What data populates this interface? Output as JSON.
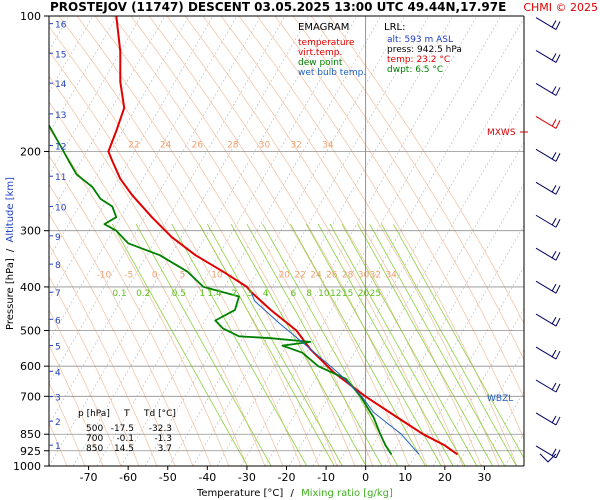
{
  "header": {
    "title": "PROSTEJOV (11747)   DESCENT   03.05.2025 13:00 UTC  49.44N,17.97E",
    "copyright": "CHMI © 2025"
  },
  "legend": {
    "title": "EMAGRAM",
    "items": [
      {
        "label": "temperature",
        "color": "#e00000"
      },
      {
        "label": "virt.temp.",
        "color": "#e00000"
      },
      {
        "label": "dew point",
        "color": "#008000"
      },
      {
        "label": "wet bulb temp.",
        "color": "#2060c0"
      }
    ]
  },
  "lrl": {
    "title": "LRL:",
    "alt": "alt: 593 m ASL",
    "press": "press: 942.5 hPa",
    "temp": "temp: 23.2 °C",
    "dwpt": "dwpt: 6.5 °C"
  },
  "axes": {
    "ylabel_pressure": "Pressure [hPa]",
    "ylabel_sep": "/",
    "ylabel_altitude": "Altitude [km]",
    "xlabel_temp": "Temperature [°C]",
    "xlabel_sep": "/",
    "xlabel_mix": "Mixing ratio [g/kg]"
  },
  "markers": {
    "mxws": "MXWS",
    "wbzl": "WBZL"
  },
  "table": {
    "headers": [
      "p [hPa]",
      "T",
      "Td [°C]"
    ],
    "rows": [
      [
        "500",
        "-17.5",
        "-32.3"
      ],
      [
        "700",
        "-0.1",
        "-1.3"
      ],
      [
        "850",
        "14.5",
        "3.7"
      ]
    ]
  },
  "colors": {
    "temperature": "#e00000",
    "dewpoint": "#008000",
    "wetbulb": "#2060c0",
    "isotherm": "#b8b8b8",
    "dry_adiabat": "#f0c0a0",
    "moist_adiabat": "#f8d8b0",
    "mixing_ratio": "#90d040",
    "isobar": "#909090",
    "wind": "#000060",
    "mxws": "#d00000"
  },
  "chart_data": {
    "type": "line",
    "x_axis": {
      "label": "Temperature [°C]",
      "ticks": [
        -70,
        -60,
        -50,
        -40,
        -30,
        -20,
        -10,
        0,
        10,
        20,
        30
      ],
      "range": [
        -80,
        40
      ]
    },
    "y_axis": {
      "label": "Pressure [hPa]",
      "scale": "log",
      "ticks": [
        100,
        200,
        300,
        400,
        500,
        600,
        700,
        850,
        925,
        1000
      ],
      "range": [
        100,
        1000
      ]
    },
    "altitude_km_ticks": [
      {
        "label": "16",
        "p": 104
      },
      {
        "label": "15",
        "p": 121
      },
      {
        "label": "14",
        "p": 141
      },
      {
        "label": "13",
        "p": 165
      },
      {
        "label": "12",
        "p": 194
      },
      {
        "label": "11",
        "p": 227
      },
      {
        "label": "10",
        "p": 265
      },
      {
        "label": "9",
        "p": 308
      },
      {
        "label": "8",
        "p": 356
      },
      {
        "label": "7",
        "p": 411
      },
      {
        "label": "6",
        "p": 472
      },
      {
        "label": "5",
        "p": 540
      },
      {
        "label": "4",
        "p": 616
      },
      {
        "label": "3",
        "p": 701
      },
      {
        "label": "2",
        "p": 795
      },
      {
        "label": "1",
        "p": 899
      }
    ],
    "dry_adiabat_labels": [
      {
        "text": "22",
        "p": 196,
        "t": -60
      },
      {
        "text": "24",
        "p": 196,
        "t": -52
      },
      {
        "text": "26",
        "p": 196,
        "t": -44
      },
      {
        "text": "28",
        "p": 196,
        "t": -35
      },
      {
        "text": "30",
        "p": 196,
        "t": -27
      },
      {
        "text": "32",
        "p": 196,
        "t": -19
      },
      {
        "text": "34",
        "p": 196,
        "t": -11
      },
      {
        "text": "-10",
        "p": 381,
        "t": -68
      },
      {
        "text": "-5",
        "p": 381,
        "t": -61
      },
      {
        "text": "0",
        "p": 381,
        "t": -54
      },
      {
        "text": "5",
        "p": 381,
        "t": -47
      },
      {
        "text": "10",
        "p": 381,
        "t": -39
      },
      {
        "text": "20",
        "p": 381,
        "t": -22
      },
      {
        "text": "22",
        "p": 381,
        "t": -18
      },
      {
        "text": "24",
        "p": 381,
        "t": -14
      },
      {
        "text": "26",
        "p": 381,
        "t": -10
      },
      {
        "text": "28",
        "p": 381,
        "t": -6
      },
      {
        "text": "30",
        "p": 381,
        "t": -2
      },
      {
        "text": "32",
        "p": 381,
        "t": 1
      },
      {
        "text": "34",
        "p": 381,
        "t": 5
      }
    ],
    "mixing_ratio_labels": [
      {
        "text": "0.1",
        "p": 419,
        "t": -64
      },
      {
        "text": "0.2",
        "p": 419,
        "t": -58
      },
      {
        "text": "0.5",
        "p": 419,
        "t": -49
      },
      {
        "text": "1",
        "p": 419,
        "t": -42
      },
      {
        "text": "2",
        "p": 419,
        "t": -34
      },
      {
        "text": "1.4",
        "p": 419,
        "t": -40
      },
      {
        "text": "3",
        "p": 419,
        "t": -30
      },
      {
        "text": "4",
        "p": 419,
        "t": -26
      },
      {
        "text": "6",
        "p": 419,
        "t": -19
      },
      {
        "text": "8",
        "p": 419,
        "t": -15
      },
      {
        "text": "10",
        "p": 419,
        "t": -12
      },
      {
        "text": "12",
        "p": 419,
        "t": -9
      },
      {
        "text": "15",
        "p": 419,
        "t": -6
      },
      {
        "text": "20",
        "p": 419,
        "t": -2
      },
      {
        "text": "25",
        "p": 419,
        "t": 1
      }
    ],
    "series": [
      {
        "name": "temperature",
        "points": [
          [
            23.2,
            942.5
          ],
          [
            20,
            900
          ],
          [
            14.5,
            850
          ],
          [
            8,
            780
          ],
          [
            -0.1,
            700
          ],
          [
            -8,
            620
          ],
          [
            -14,
            550
          ],
          [
            -17.5,
            500
          ],
          [
            -24,
            450
          ],
          [
            -29,
            410
          ],
          [
            -30,
            400
          ],
          [
            -36,
            370
          ],
          [
            -43,
            340
          ],
          [
            -49,
            310
          ],
          [
            -54,
            280
          ],
          [
            -59,
            250
          ],
          [
            -62,
            230
          ],
          [
            -64,
            210
          ],
          [
            -65,
            200
          ],
          [
            -63,
            180
          ],
          [
            -61,
            160
          ],
          [
            -62,
            140
          ],
          [
            -62,
            120
          ],
          [
            -63,
            100
          ]
        ]
      },
      {
        "name": "dew point",
        "points": [
          [
            6.5,
            942.5
          ],
          [
            5,
            900
          ],
          [
            3.7,
            850
          ],
          [
            2,
            780
          ],
          [
            -1.3,
            700
          ],
          [
            -5,
            640
          ],
          [
            -12,
            600
          ],
          [
            -16,
            560
          ],
          [
            -21,
            540
          ],
          [
            -14,
            530
          ],
          [
            -24,
            520
          ],
          [
            -32,
            515
          ],
          [
            -36,
            495
          ],
          [
            -38,
            475
          ],
          [
            -33,
            450
          ],
          [
            -32,
            420
          ],
          [
            -41,
            400
          ],
          [
            -45,
            370
          ],
          [
            -52,
            340
          ],
          [
            -60,
            320
          ],
          [
            -63,
            300
          ],
          [
            -66,
            290
          ],
          [
            -63,
            280
          ],
          [
            -64,
            265
          ],
          [
            -67,
            255
          ],
          [
            -69,
            240
          ],
          [
            -73,
            225
          ],
          [
            -75,
            210
          ],
          [
            -77,
            195
          ],
          [
            -80,
            175
          ]
        ]
      },
      {
        "name": "wet bulb temp.",
        "points": [
          [
            13.5,
            942.5
          ],
          [
            9,
            850
          ],
          [
            2,
            760
          ],
          [
            -1,
            700
          ],
          [
            -7,
            620
          ],
          [
            -15,
            540
          ],
          [
            -22,
            480
          ],
          [
            -28,
            430
          ],
          [
            -29,
            410
          ]
        ]
      }
    ],
    "wind_barbs_count": 14,
    "mxws_p": 186,
    "wbzl_p": 700,
    "grid": true
  }
}
